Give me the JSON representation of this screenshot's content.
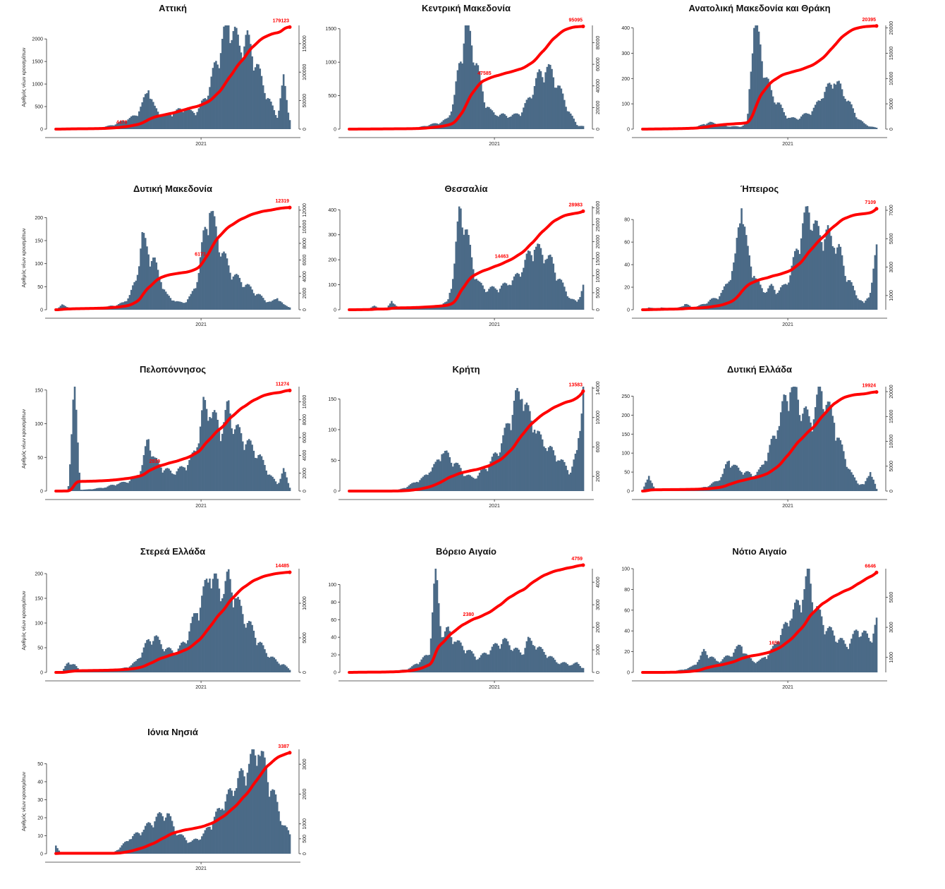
{
  "colors": {
    "bars": "#4b6a87",
    "cumulative_line": "#ff0000",
    "labels": "#ff0000",
    "axis": "#333333"
  },
  "chart_data": [
    {
      "type": "bar",
      "title": "Αττική",
      "xlabel": "",
      "ylabel": "Αριθμός νέων κρουσμάτων",
      "x_tick": "2021",
      "ylim": [
        0,
        2300
      ],
      "y_ticks": [
        "0",
        "500",
        "1000",
        "1500",
        "2000"
      ],
      "y2lim": [
        0,
        182000
      ],
      "y2_ticks": [
        "0",
        "50000",
        "100000",
        "150000"
      ],
      "daily": [
        0,
        20,
        30,
        20,
        10,
        10,
        20,
        30,
        50,
        80,
        120,
        180,
        220,
        300,
        500,
        860,
        450,
        300,
        280,
        340,
        400,
        420,
        360,
        380,
        600,
        900,
        1400,
        1800,
        2300,
        2000,
        1700,
        1900,
        1600,
        1200,
        800,
        500,
        250,
        1050,
        200
      ],
      "cumulative_labels": [
        "4478",
        "179123"
      ],
      "cumulative_label_positions": [
        0.63,
        1.0
      ]
    },
    {
      "type": "bar",
      "title": "Κεντρική Μακεδονία",
      "xlabel": "",
      "ylabel": "",
      "x_tick": "2021",
      "ylim": [
        0,
        1550
      ],
      "y_ticks": [
        "0",
        "500",
        "1000",
        "1500"
      ],
      "y2lim": [
        0,
        96000
      ],
      "y2_ticks": [
        "0",
        "20000",
        "40000",
        "60000",
        "80000"
      ],
      "daily": [
        0,
        5,
        5,
        5,
        5,
        5,
        5,
        5,
        5,
        5,
        10,
        20,
        40,
        60,
        80,
        100,
        150,
        400,
        1000,
        1500,
        1200,
        800,
        400,
        250,
        200,
        200,
        180,
        200,
        250,
        400,
        600,
        800,
        850,
        800,
        600,
        400,
        200,
        60,
        40
      ],
      "cumulative_labels": [
        "47585",
        "95095"
      ],
      "cumulative_label_positions": [
        0.5,
        1.0
      ]
    },
    {
      "type": "bar",
      "title": "Ανατολική Μακεδονία και Θράκη",
      "xlabel": "",
      "ylabel": "",
      "x_tick": "2021",
      "ylim": [
        0,
        410
      ],
      "y_ticks": [
        "0",
        "100",
        "200",
        "300",
        "400"
      ],
      "y2lim": [
        0,
        20500
      ],
      "y2_ticks": [
        "0",
        "5000",
        "10000",
        "15000",
        "20000"
      ],
      "daily": [
        0,
        2,
        2,
        2,
        2,
        3,
        3,
        4,
        5,
        10,
        20,
        25,
        20,
        15,
        10,
        10,
        10,
        20,
        400,
        320,
        200,
        130,
        100,
        60,
        40,
        40,
        50,
        60,
        80,
        120,
        150,
        180,
        160,
        120,
        80,
        40,
        20,
        10,
        5
      ],
      "cumulative_labels": [
        "20395"
      ],
      "cumulative_label_positions": [
        1.0
      ]
    },
    {
      "type": "bar",
      "title": "Δυτική Μακεδονία",
      "xlabel": "",
      "ylabel": "Αριθμός νέων κρουσμάτων",
      "x_tick": "2021",
      "ylim": [
        0,
        225
      ],
      "y_ticks": [
        "0",
        "50",
        "100",
        "150",
        "200"
      ],
      "y2lim": [
        0,
        12500
      ],
      "y2_ticks": [
        "0",
        "2000",
        "4000",
        "6000",
        "8000",
        "10000",
        "12000"
      ],
      "daily": [
        0,
        10,
        5,
        3,
        2,
        2,
        2,
        3,
        5,
        8,
        10,
        15,
        30,
        60,
        150,
        120,
        100,
        60,
        30,
        20,
        15,
        15,
        30,
        60,
        150,
        210,
        160,
        120,
        90,
        70,
        60,
        50,
        40,
        30,
        20,
        15,
        25,
        10,
        5
      ],
      "cumulative_labels": [
        "6173",
        "12319"
      ],
      "cumulative_label_positions": [
        0.5,
        1.0
      ]
    },
    {
      "type": "bar",
      "title": "Θεσσαλία",
      "xlabel": "",
      "ylabel": "",
      "x_tick": "2021",
      "ylim": [
        0,
        415
      ],
      "y_ticks": [
        "0",
        "100",
        "200",
        "300",
        "400"
      ],
      "y2lim": [
        0,
        30500
      ],
      "y2_ticks": [
        "0",
        "5000",
        "10000",
        "15000",
        "20000",
        "25000",
        "30000"
      ],
      "daily": [
        0,
        2,
        3,
        2,
        15,
        3,
        2,
        35,
        3,
        3,
        5,
        8,
        10,
        12,
        15,
        20,
        30,
        150,
        400,
        300,
        180,
        100,
        80,
        80,
        80,
        90,
        100,
        120,
        150,
        200,
        240,
        220,
        200,
        180,
        120,
        80,
        40,
        30,
        90
      ],
      "cumulative_labels": [
        "14463",
        "28983"
      ],
      "cumulative_label_positions": [
        0.5,
        1.0
      ]
    },
    {
      "type": "bar",
      "title": "Ήπειρος",
      "xlabel": "",
      "ylabel": "",
      "x_tick": "2021",
      "ylim": [
        0,
        92
      ],
      "y_ticks": [
        "0",
        "20",
        "40",
        "60",
        "80"
      ],
      "y2lim": [
        0,
        7300
      ],
      "y2_ticks": [
        "1000",
        "3000",
        "5000",
        "7000"
      ],
      "daily": [
        0,
        2,
        1,
        2,
        1,
        1,
        2,
        5,
        2,
        3,
        5,
        8,
        10,
        15,
        25,
        40,
        90,
        50,
        30,
        20,
        15,
        20,
        15,
        20,
        30,
        50,
        70,
        85,
        70,
        60,
        65,
        55,
        50,
        30,
        20,
        10,
        5,
        15,
        50
      ],
      "cumulative_labels": [
        "7109"
      ],
      "cumulative_label_positions": [
        1.0
      ]
    },
    {
      "type": "bar",
      "title": "Πελοπόννησος",
      "xlabel": "",
      "ylabel": "Αριθμός νέων κρουσμάτων",
      "x_tick": "2021",
      "ylim": [
        0,
        155
      ],
      "y_ticks": [
        "0",
        "50",
        "100",
        "150"
      ],
      "y2lim": [
        0,
        11700
      ],
      "y2_ticks": [
        "0",
        "2000",
        "4000",
        "6000",
        "8000",
        "10000"
      ],
      "daily": [
        0,
        1,
        2,
        150,
        2,
        2,
        3,
        4,
        5,
        8,
        10,
        12,
        15,
        20,
        35,
        75,
        45,
        35,
        30,
        25,
        30,
        35,
        45,
        65,
        120,
        110,
        100,
        85,
        120,
        90,
        80,
        70,
        60,
        50,
        35,
        20,
        10,
        30,
        5
      ],
      "cumulative_labels": [
        "2839",
        "11274"
      ],
      "cumulative_label_positions": [
        0.25,
        1.0
      ]
    },
    {
      "type": "bar",
      "title": "Κρήτη",
      "xlabel": "",
      "ylabel": "",
      "x_tick": "2021",
      "ylim": [
        0,
        170
      ],
      "y_ticks": [
        "0",
        "50",
        "100",
        "150"
      ],
      "y2lim": [
        0,
        14200
      ],
      "y2_ticks": [
        "2000",
        "6000",
        "10000",
        "14000"
      ],
      "daily": [
        0,
        0,
        0,
        0,
        0,
        0,
        0,
        1,
        2,
        5,
        10,
        15,
        20,
        30,
        40,
        60,
        55,
        45,
        35,
        25,
        20,
        25,
        35,
        45,
        60,
        80,
        110,
        140,
        150,
        120,
        100,
        80,
        70,
        60,
        50,
        40,
        30,
        60,
        165
      ],
      "cumulative_labels": [
        "13583"
      ],
      "cumulative_label_positions": [
        1.0
      ]
    },
    {
      "type": "bar",
      "title": "Δυτική Ελλάδα",
      "xlabel": "",
      "ylabel": "",
      "x_tick": "2021",
      "ylim": [
        0,
        275
      ],
      "y_ticks": [
        "0",
        "50",
        "100",
        "150",
        "200",
        "250"
      ],
      "y2lim": [
        0,
        21000
      ],
      "y2_ticks": [
        "0",
        "5000",
        "10000",
        "15000",
        "20000"
      ],
      "daily": [
        0,
        40,
        2,
        2,
        2,
        2,
        2,
        3,
        4,
        5,
        10,
        15,
        25,
        40,
        80,
        60,
        50,
        45,
        40,
        50,
        80,
        120,
        160,
        220,
        260,
        240,
        200,
        180,
        200,
        260,
        210,
        180,
        120,
        80,
        40,
        20,
        15,
        50,
        5
      ],
      "cumulative_labels": [
        "19924"
      ],
      "cumulative_label_positions": [
        1.0
      ]
    },
    {
      "type": "bar",
      "title": "Στερεά Ελλάδα",
      "xlabel": "",
      "ylabel": "Αριθμός νέων κρουσμάτων",
      "x_tick": "2021",
      "ylim": [
        0,
        210
      ],
      "y_ticks": [
        "0",
        "50",
        "100",
        "150",
        "200"
      ],
      "y2lim": [
        0,
        15000
      ],
      "y2_ticks": [
        "0",
        "5000",
        "10000"
      ],
      "daily": [
        0,
        1,
        20,
        15,
        2,
        2,
        2,
        2,
        3,
        4,
        6,
        8,
        12,
        20,
        40,
        60,
        70,
        55,
        45,
        40,
        45,
        60,
        90,
        120,
        150,
        190,
        170,
        150,
        180,
        150,
        120,
        100,
        80,
        60,
        40,
        30,
        20,
        15,
        5
      ],
      "cumulative_labels": [
        "14485"
      ],
      "cumulative_label_positions": [
        1.0
      ]
    },
    {
      "type": "bar",
      "title": "Βόρειο Αιγαίο",
      "xlabel": "",
      "ylabel": "",
      "x_tick": "2021",
      "ylim": [
        0,
        118
      ],
      "y_ticks": [
        "0",
        "20",
        "40",
        "60",
        "80",
        "100"
      ],
      "y2lim": [
        0,
        4600
      ],
      "y2_ticks": [
        "0",
        "1000",
        "2000",
        "3000",
        "4000"
      ],
      "daily": [
        0,
        1,
        0,
        1,
        0,
        0,
        1,
        1,
        2,
        3,
        5,
        10,
        15,
        20,
        110,
        40,
        45,
        35,
        30,
        25,
        20,
        15,
        20,
        25,
        30,
        35,
        30,
        25,
        20,
        35,
        30,
        25,
        20,
        15,
        10,
        10,
        8,
        10,
        5
      ],
      "cumulative_labels": [
        "2380",
        "4759"
      ],
      "cumulative_label_positions": [
        0.5,
        1.0
      ]
    },
    {
      "type": "bar",
      "title": "Νότιο Αιγαίο",
      "xlabel": "",
      "ylabel": "",
      "x_tick": "2021",
      "ylim": [
        0,
        100
      ],
      "y_ticks": [
        "0",
        "20",
        "40",
        "60",
        "80",
        "100"
      ],
      "y2lim": [
        0,
        6900
      ],
      "y2_ticks": [
        "1000",
        "3000",
        "5000"
      ],
      "daily": [
        0,
        0,
        0,
        0,
        1,
        1,
        2,
        3,
        5,
        10,
        20,
        15,
        10,
        12,
        15,
        20,
        25,
        15,
        10,
        10,
        15,
        20,
        30,
        40,
        50,
        60,
        70,
        90,
        60,
        50,
        40,
        35,
        30,
        25,
        30,
        40,
        35,
        30,
        45
      ],
      "cumulative_labels": [
        "1658",
        "6646"
      ],
      "cumulative_label_positions": [
        0.25,
        1.0
      ]
    },
    {
      "type": "bar",
      "title": "Ιόνια Νησιά",
      "xlabel": "",
      "ylabel": "Αριθμός νέων κρουσμάτων",
      "x_tick": "2021",
      "ylim": [
        0,
        58
      ],
      "y_ticks": [
        "0",
        "10",
        "20",
        "30",
        "40",
        "50"
      ],
      "y2lim": [
        0,
        3500
      ],
      "y2_ticks": [
        "0",
        "500",
        "1000",
        "2000",
        "3000"
      ],
      "daily": [
        4,
        0,
        0,
        0,
        0,
        0,
        0,
        0,
        0,
        0,
        2,
        5,
        8,
        10,
        12,
        15,
        18,
        20,
        22,
        15,
        10,
        8,
        6,
        8,
        10,
        15,
        20,
        25,
        30,
        35,
        40,
        45,
        50,
        55,
        45,
        35,
        25,
        15,
        10
      ],
      "cumulative_labels": [
        "3387"
      ],
      "cumulative_label_positions": [
        1.0
      ]
    }
  ]
}
